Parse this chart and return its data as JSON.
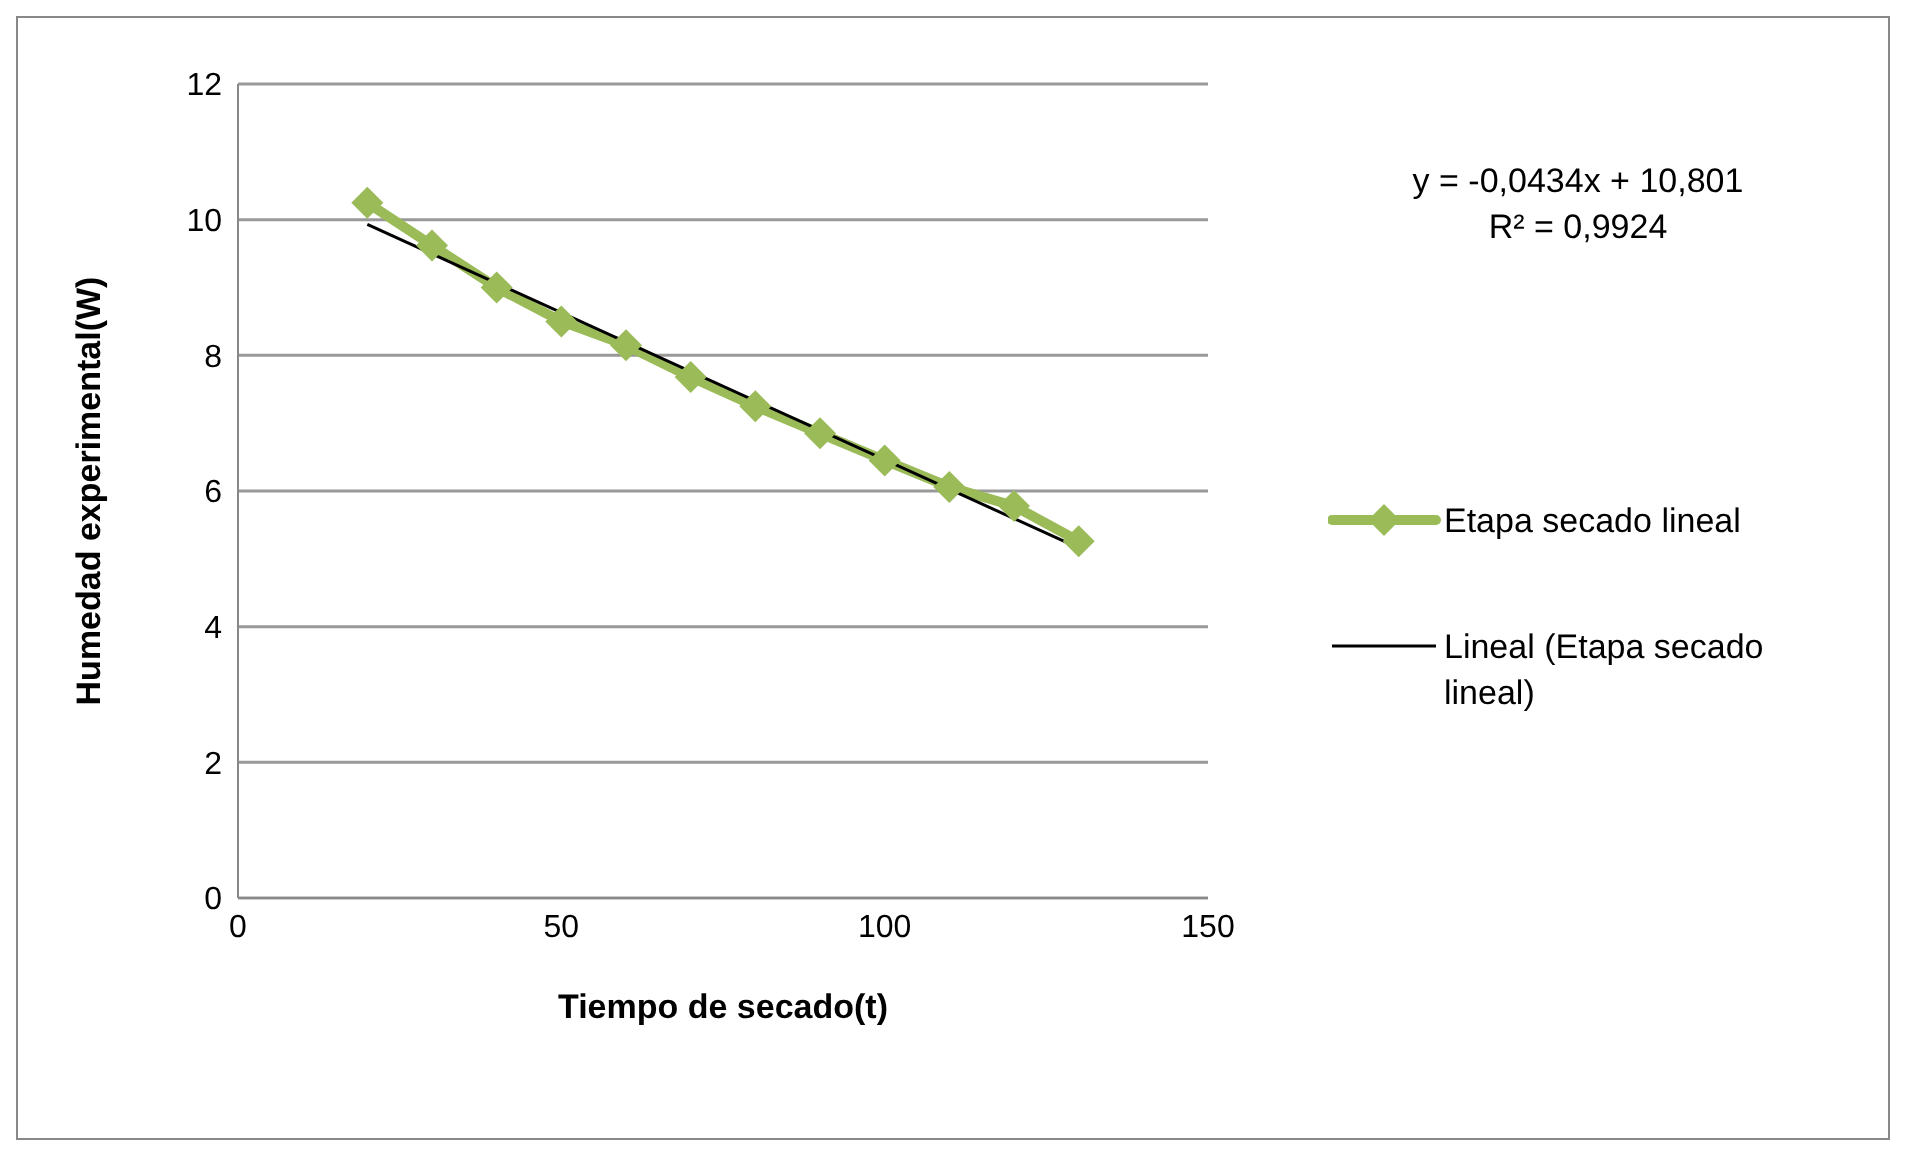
{
  "chart_data": {
    "type": "line",
    "xlabel": "Tiempo de secado(t)",
    "ylabel": "Humedad experimental(W)",
    "x": [
      20,
      30,
      40,
      50,
      60,
      70,
      80,
      90,
      100,
      110,
      120,
      130
    ],
    "series": [
      {
        "name": "Etapa secado lineal",
        "color": "#9bbb59",
        "values": [
          10.25,
          9.62,
          9.0,
          8.5,
          8.15,
          7.68,
          7.25,
          6.85,
          6.45,
          6.06,
          5.78,
          5.26
        ],
        "marker": "diamond"
      },
      {
        "name": "Lineal (Etapa secado lineal)",
        "color": "#000000",
        "type": "line",
        "x": [
          20,
          130
        ],
        "values": [
          9.93,
          5.16
        ],
        "marker": "none"
      }
    ],
    "xlim": [
      0,
      150
    ],
    "xticks": [
      0,
      50,
      100,
      150
    ],
    "ylim": [
      0,
      12
    ],
    "yticks": [
      0,
      2,
      4,
      6,
      8,
      10,
      12
    ],
    "grid": "y",
    "legend": "right",
    "annotations": [
      "y = -0,0434x + 10,801",
      "R² = 0,9924"
    ]
  }
}
